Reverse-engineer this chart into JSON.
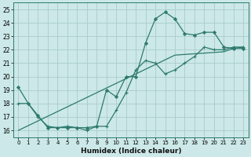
{
  "xlabel": "Humidex (Indice chaleur)",
  "bg_color": "#cce8e8",
  "grid_color": "#aacccc",
  "line_color": "#2d7a6e",
  "x_hours": [
    0,
    1,
    2,
    3,
    4,
    5,
    6,
    7,
    8,
    9,
    10,
    11,
    12,
    13,
    14,
    15,
    16,
    17,
    18,
    19,
    20,
    21,
    22,
    23
  ],
  "line1_y": [
    19.2,
    18.0,
    17.1,
    16.2,
    16.2,
    16.2,
    16.2,
    16.2,
    16.3,
    19.0,
    18.5,
    20.0,
    20.0,
    22.5,
    24.3,
    24.8,
    24.3,
    23.2,
    23.1,
    23.3,
    23.3,
    22.2,
    22.1,
    22.1
  ],
  "line2_y": [
    18.0,
    18.0,
    17.0,
    16.3,
    16.2,
    16.3,
    16.2,
    16.0,
    16.3,
    16.3,
    17.5,
    18.8,
    20.5,
    21.2,
    21.0,
    20.2,
    20.5,
    21.0,
    21.5,
    22.2,
    22.0,
    22.0,
    22.2,
    22.2
  ],
  "line3_y": [
    16.0,
    16.35,
    16.7,
    17.05,
    17.4,
    17.75,
    18.1,
    18.45,
    18.8,
    19.15,
    19.5,
    19.85,
    20.2,
    20.55,
    20.9,
    21.25,
    21.6,
    21.65,
    21.7,
    21.75,
    21.8,
    21.85,
    22.1,
    22.2
  ],
  "yticks": [
    16,
    17,
    18,
    19,
    20,
    21,
    22,
    23,
    24,
    25
  ],
  "xtick_labels": [
    "0",
    "1",
    "2",
    "3",
    "4",
    "5",
    "6",
    "7",
    "8",
    "9",
    "10",
    "11",
    "12",
    "13",
    "14",
    "15",
    "16",
    "17",
    "18",
    "19",
    "20",
    "21",
    "22",
    "23"
  ],
  "ylim": [
    15.5,
    25.5
  ],
  "xlim": [
    -0.5,
    23.5
  ]
}
